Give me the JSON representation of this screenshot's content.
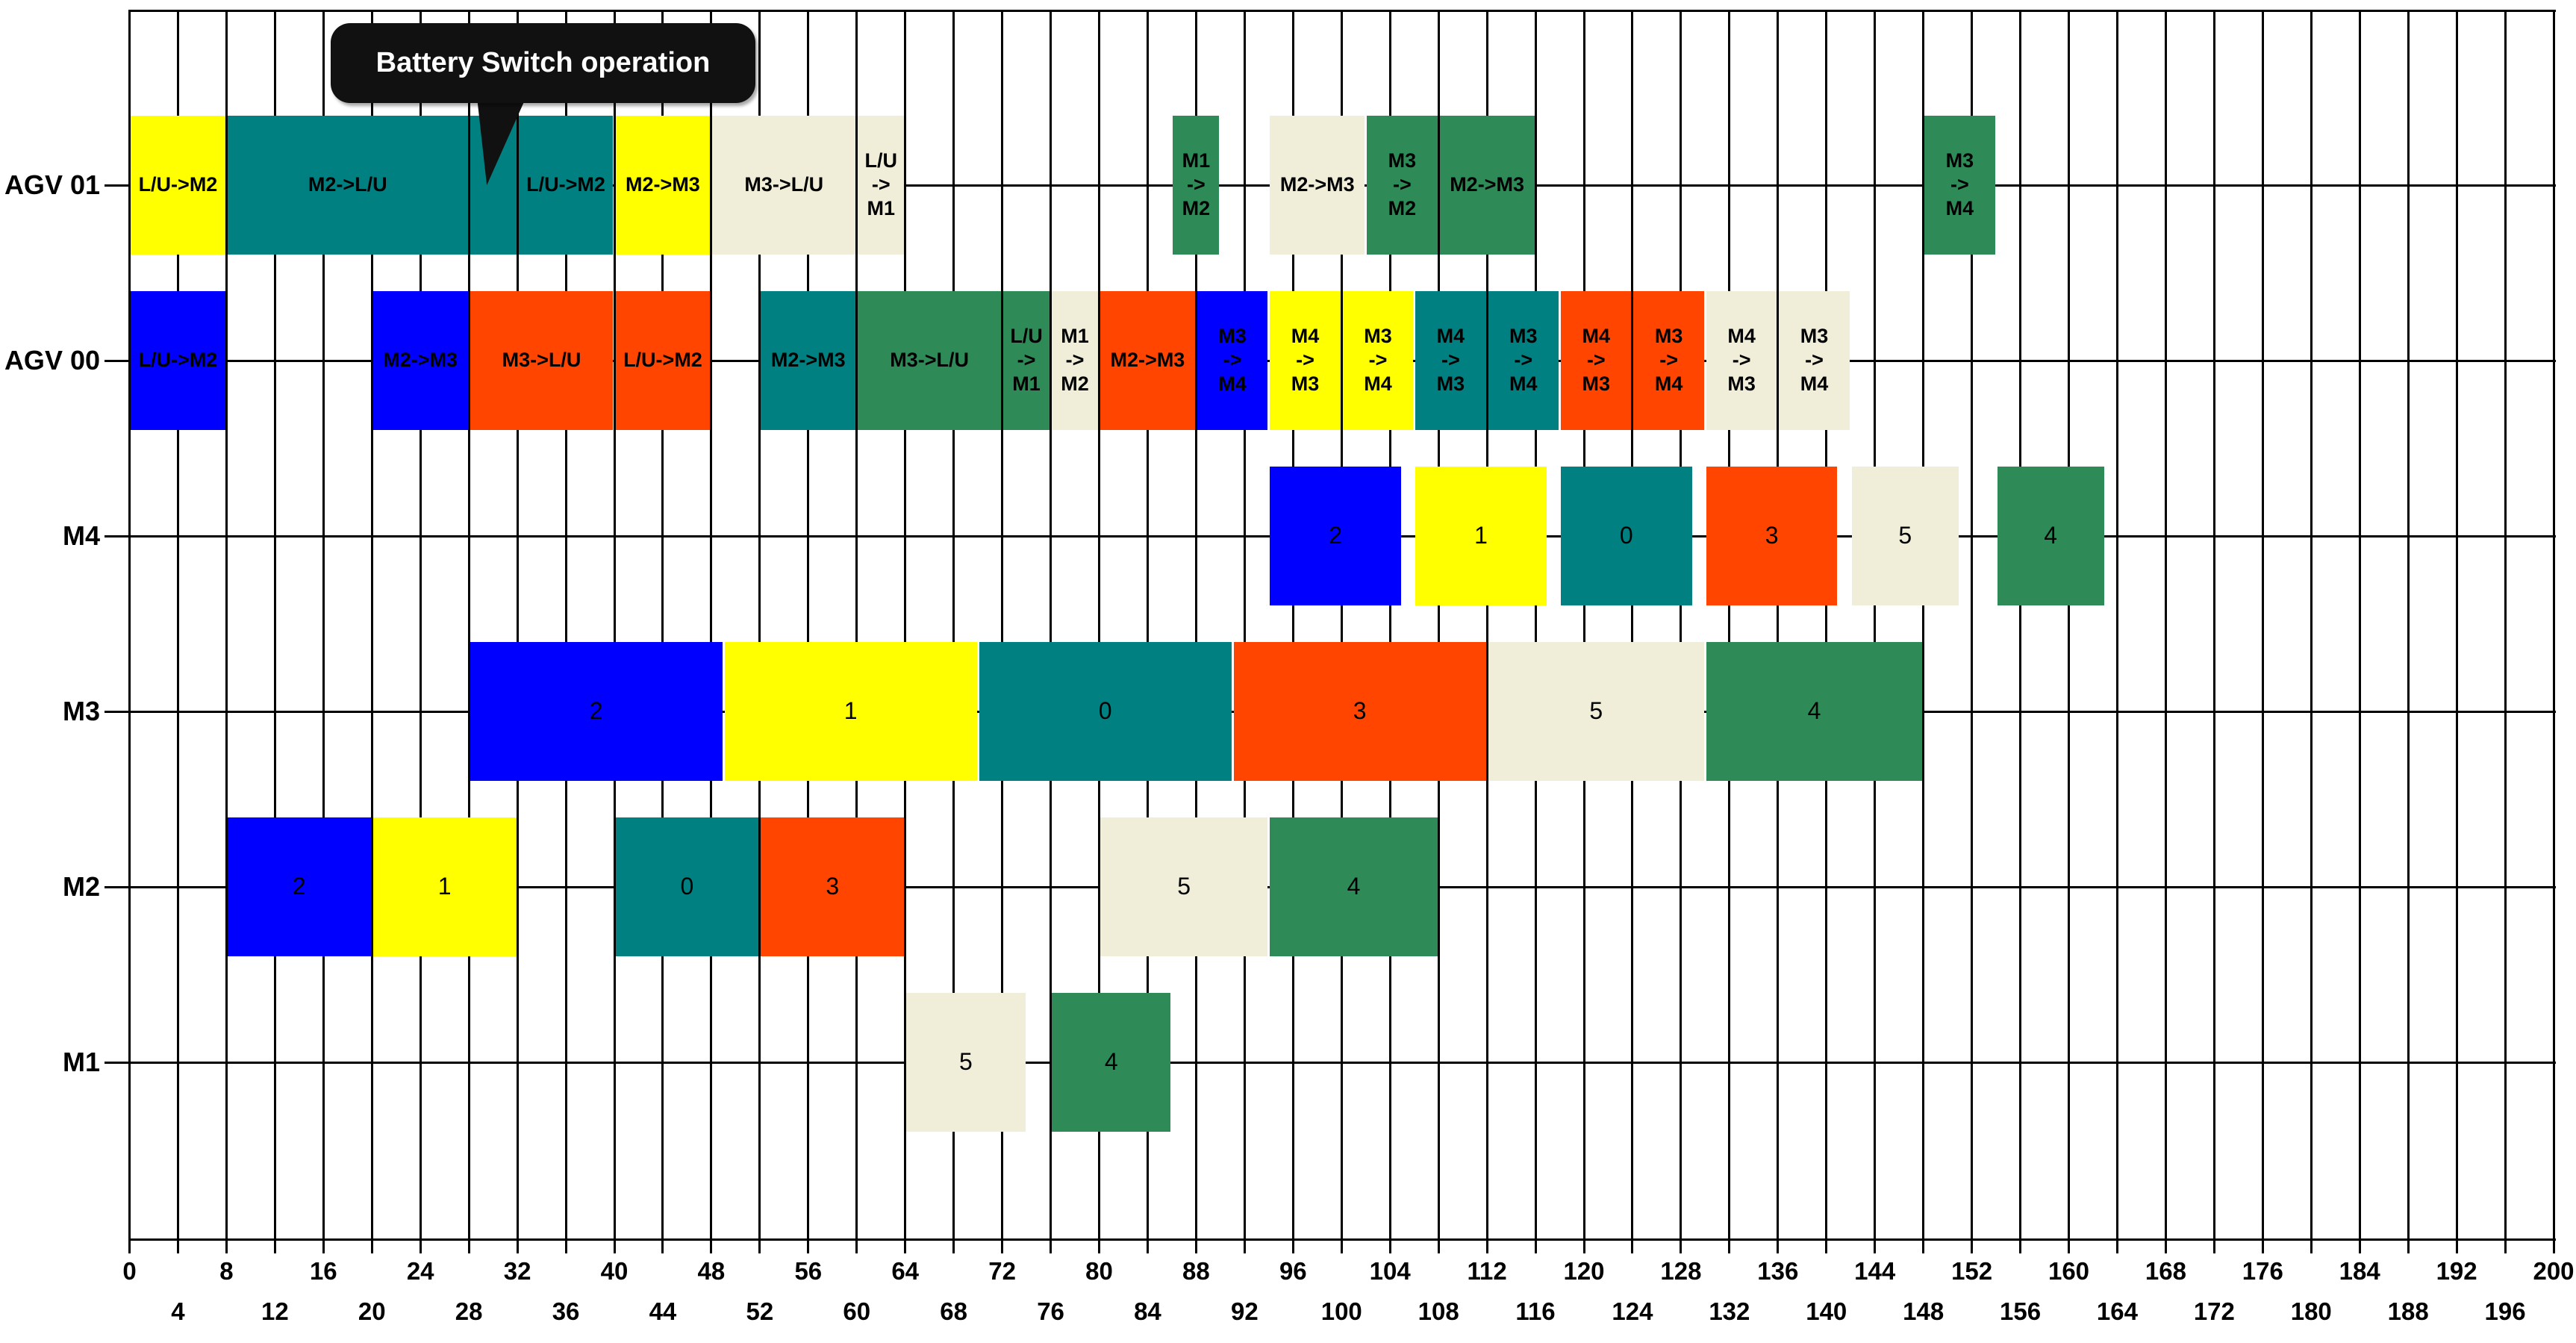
{
  "callout": {
    "text": "Battery Switch operation",
    "points_to_row": "AGV 01",
    "points_to_interval": [
      28,
      32
    ]
  },
  "colors": {
    "job0": "#008080",
    "job1": "#FFFF00",
    "job2": "#0000FF",
    "job3": "#FF4500",
    "job4": "#2E8B57",
    "job5": "#F0EED8",
    "line": "#000000",
    "background": "#FFFFFF"
  },
  "chart_data": {
    "type": "gantt",
    "title": "",
    "xlabel": "",
    "ylabel": "",
    "x_axis": {
      "min": 0,
      "max": 200,
      "tick_step": 4,
      "grid": true,
      "upper_tick_labels": [
        0,
        8,
        16,
        24,
        32,
        40,
        48,
        56,
        64,
        72,
        80,
        88,
        96,
        104,
        112,
        120,
        128,
        136,
        144,
        152,
        160,
        168,
        176,
        184,
        192,
        200
      ],
      "lower_tick_labels": [
        4,
        12,
        20,
        28,
        36,
        44,
        52,
        60,
        68,
        76,
        84,
        92,
        100,
        108,
        116,
        124,
        132,
        140,
        148,
        156,
        164,
        172,
        180,
        188,
        196
      ]
    },
    "rows": [
      {
        "label": "AGV 01",
        "bars": [
          {
            "start": 0,
            "end": 8,
            "color": "job1",
            "label": "L/U->M2"
          },
          {
            "start": 8,
            "end": 28,
            "color": "job0",
            "label": "M2->L/U"
          },
          {
            "start": 28,
            "end": 32,
            "color": "job0",
            "label": "",
            "note": "Battery Switch operation"
          },
          {
            "start": 32,
            "end": 40,
            "color": "job0",
            "label": "L/U->M2"
          },
          {
            "start": 40,
            "end": 48,
            "color": "job1",
            "label": "M2->M3"
          },
          {
            "start": 48,
            "end": 60,
            "color": "job5",
            "label": "M3->L/U"
          },
          {
            "start": 60,
            "end": 64,
            "color": "job5",
            "label": "L/U\n->\nM1"
          },
          {
            "start": 86,
            "end": 90,
            "color": "job4",
            "label": "M1\n->\nM2"
          },
          {
            "start": 94,
            "end": 102,
            "color": "job5",
            "label": "M2->M3"
          },
          {
            "start": 102,
            "end": 108,
            "color": "job4",
            "label": "M3\n->\nM2"
          },
          {
            "start": 108,
            "end": 116,
            "color": "job4",
            "label": "M2->M3"
          },
          {
            "start": 148,
            "end": 154,
            "color": "job4",
            "label": "M3\n->\nM4"
          }
        ]
      },
      {
        "label": "AGV 00",
        "bars": [
          {
            "start": 0,
            "end": 8,
            "color": "job2",
            "label": "L/U->M2"
          },
          {
            "start": 20,
            "end": 28,
            "color": "job2",
            "label": "M2->M3"
          },
          {
            "start": 28,
            "end": 40,
            "color": "job3",
            "label": "M3->L/U"
          },
          {
            "start": 40,
            "end": 48,
            "color": "job3",
            "label": "L/U->M2"
          },
          {
            "start": 52,
            "end": 60,
            "color": "job0",
            "label": "M2->M3"
          },
          {
            "start": 60,
            "end": 72,
            "color": "job4",
            "label": "M3->L/U"
          },
          {
            "start": 72,
            "end": 76,
            "color": "job4",
            "label": "L/U\n->\nM1"
          },
          {
            "start": 76,
            "end": 80,
            "color": "job5",
            "label": "M1\n->\nM2"
          },
          {
            "start": 80,
            "end": 88,
            "color": "job3",
            "label": "M2->M3"
          },
          {
            "start": 88,
            "end": 94,
            "color": "job2",
            "label": "M3\n->\nM4"
          },
          {
            "start": 94,
            "end": 100,
            "color": "job1",
            "label": "M4\n->\nM3"
          },
          {
            "start": 100,
            "end": 106,
            "color": "job1",
            "label": "M3\n->\nM4"
          },
          {
            "start": 106,
            "end": 112,
            "color": "job0",
            "label": "M4\n->\nM3"
          },
          {
            "start": 112,
            "end": 118,
            "color": "job0",
            "label": "M3\n->\nM4"
          },
          {
            "start": 118,
            "end": 124,
            "color": "job3",
            "label": "M4\n->\nM3"
          },
          {
            "start": 124,
            "end": 130,
            "color": "job3",
            "label": "M3\n->\nM4"
          },
          {
            "start": 130,
            "end": 136,
            "color": "job5",
            "label": "M4\n->\nM3"
          },
          {
            "start": 136,
            "end": 142,
            "color": "job5",
            "label": "M3\n->\nM4"
          }
        ]
      },
      {
        "label": "M4",
        "machine": true,
        "bars": [
          {
            "start": 94,
            "end": 105,
            "color": "job2",
            "label": "2"
          },
          {
            "start": 106,
            "end": 117,
            "color": "job1",
            "label": "1"
          },
          {
            "start": 118,
            "end": 129,
            "color": "job0",
            "label": "0"
          },
          {
            "start": 130,
            "end": 141,
            "color": "job3",
            "label": "3"
          },
          {
            "start": 142,
            "end": 151,
            "color": "job5",
            "label": "5"
          },
          {
            "start": 154,
            "end": 163,
            "color": "job4",
            "label": "4"
          }
        ]
      },
      {
        "label": "M3",
        "machine": true,
        "bars": [
          {
            "start": 28,
            "end": 49,
            "color": "job2",
            "label": "2"
          },
          {
            "start": 49,
            "end": 70,
            "color": "job1",
            "label": "1"
          },
          {
            "start": 70,
            "end": 91,
            "color": "job0",
            "label": "0"
          },
          {
            "start": 91,
            "end": 112,
            "color": "job3",
            "label": "3"
          },
          {
            "start": 112,
            "end": 130,
            "color": "job5",
            "label": "5"
          },
          {
            "start": 130,
            "end": 148,
            "color": "job4",
            "label": "4"
          }
        ]
      },
      {
        "label": "M2",
        "machine": true,
        "bars": [
          {
            "start": 8,
            "end": 20,
            "color": "job2",
            "label": "2"
          },
          {
            "start": 20,
            "end": 32,
            "color": "job1",
            "label": "1"
          },
          {
            "start": 40,
            "end": 52,
            "color": "job0",
            "label": "0"
          },
          {
            "start": 52,
            "end": 64,
            "color": "job3",
            "label": "3"
          },
          {
            "start": 80,
            "end": 94,
            "color": "job5",
            "label": "5"
          },
          {
            "start": 94,
            "end": 108,
            "color": "job4",
            "label": "4"
          }
        ]
      },
      {
        "label": "M1",
        "machine": true,
        "bars": [
          {
            "start": 64,
            "end": 74,
            "color": "job5",
            "label": "5"
          },
          {
            "start": 76,
            "end": 86,
            "color": "job4",
            "label": "4"
          }
        ]
      }
    ]
  }
}
